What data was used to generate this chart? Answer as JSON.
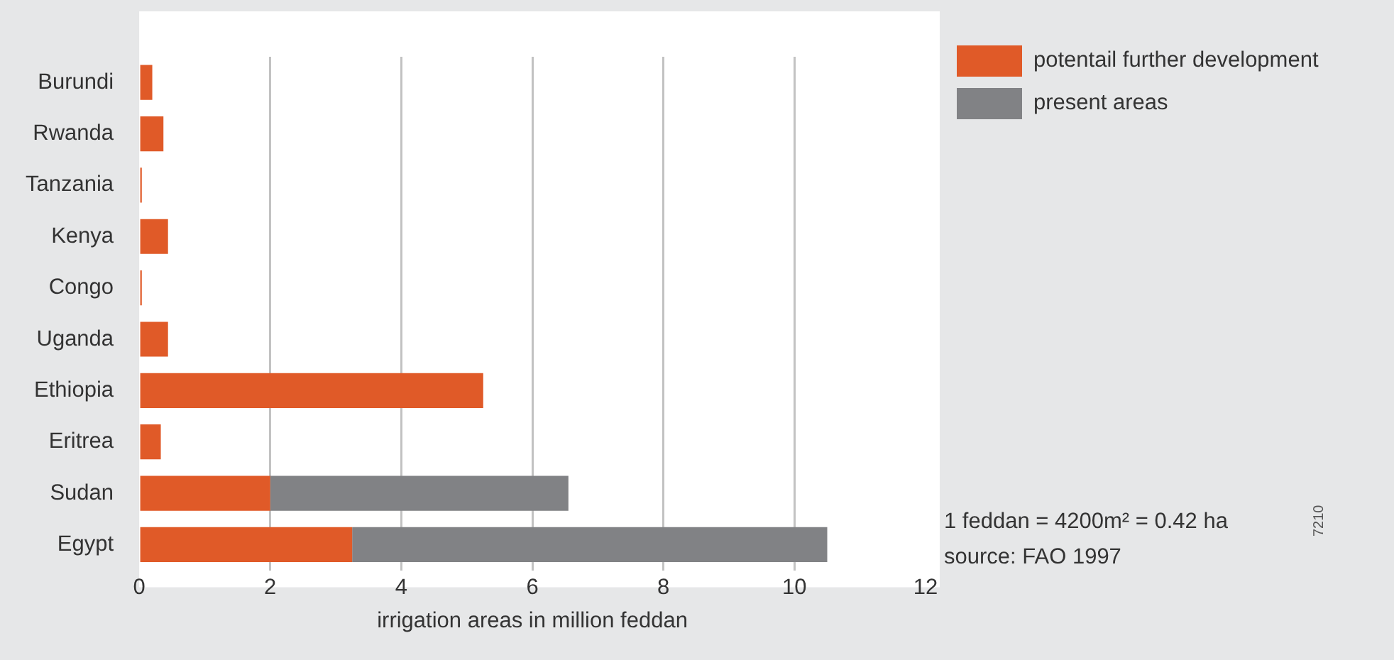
{
  "chart_data": {
    "type": "bar",
    "orientation": "horizontal",
    "stacked": true,
    "categories": [
      "Burundi",
      "Rwanda",
      "Tanzania",
      "Kenya",
      "Congo",
      "Uganda",
      "Ethiopia",
      "Eritrea",
      "Sudan",
      "Egypt"
    ],
    "series": [
      {
        "name": "potentail further development",
        "color": "#e05a28",
        "values": [
          0.2,
          0.37,
          0.04,
          0.44,
          0.04,
          0.44,
          5.25,
          0.33,
          2.0,
          3.25
        ]
      },
      {
        "name": "present areas",
        "color": "#818285",
        "values": [
          null,
          null,
          null,
          null,
          null,
          null,
          null,
          null,
          4.55,
          7.25
        ]
      }
    ],
    "xlabel": "irrigation areas in million feddan",
    "xlim": [
      0,
      12
    ],
    "xticks": [
      0,
      2,
      4,
      6,
      8,
      10,
      12
    ],
    "grid": "x",
    "legend": "top right",
    "annotations": [
      "1 feddan = 4200m² = 0.42 ha",
      "source: FAO 1997",
      "7210"
    ]
  }
}
